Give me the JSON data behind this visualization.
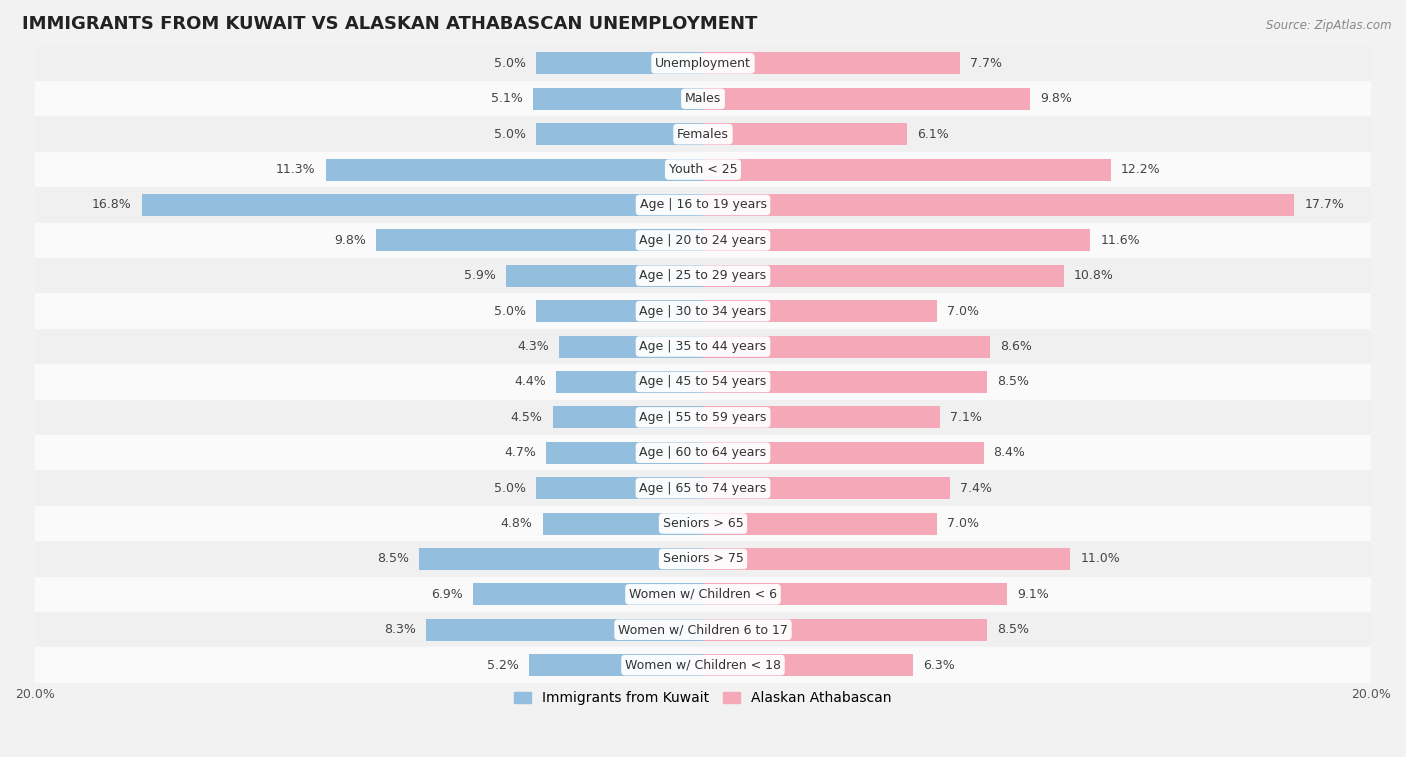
{
  "title": "IMMIGRANTS FROM KUWAIT VS ALASKAN ATHABASCAN UNEMPLOYMENT",
  "source": "Source: ZipAtlas.com",
  "categories": [
    "Unemployment",
    "Males",
    "Females",
    "Youth < 25",
    "Age | 16 to 19 years",
    "Age | 20 to 24 years",
    "Age | 25 to 29 years",
    "Age | 30 to 34 years",
    "Age | 35 to 44 years",
    "Age | 45 to 54 years",
    "Age | 55 to 59 years",
    "Age | 60 to 64 years",
    "Age | 65 to 74 years",
    "Seniors > 65",
    "Seniors > 75",
    "Women w/ Children < 6",
    "Women w/ Children 6 to 17",
    "Women w/ Children < 18"
  ],
  "kuwait_values": [
    5.0,
    5.1,
    5.0,
    11.3,
    16.8,
    9.8,
    5.9,
    5.0,
    4.3,
    4.4,
    4.5,
    4.7,
    5.0,
    4.8,
    8.5,
    6.9,
    8.3,
    5.2
  ],
  "athabascan_values": [
    7.7,
    9.8,
    6.1,
    12.2,
    17.7,
    11.6,
    10.8,
    7.0,
    8.6,
    8.5,
    7.1,
    8.4,
    7.4,
    7.0,
    11.0,
    9.1,
    8.5,
    6.3
  ],
  "kuwait_color": "#94BEDD",
  "athabascan_color": "#F5A8B8",
  "background_odd": "#f0f0f0",
  "background_even": "#fafafa",
  "xlim": 20.0,
  "title_fontsize": 13,
  "label_fontsize": 9,
  "value_fontsize": 9,
  "legend_fontsize": 10,
  "bar_height": 0.62
}
